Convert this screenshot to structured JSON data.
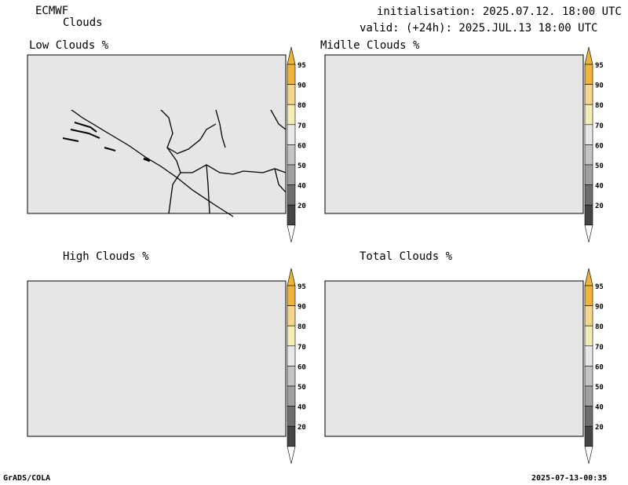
{
  "header": {
    "model": "ECMWF",
    "product": "Clouds",
    "init_line": "initialisation: 2025.07.12. 18:00 UTC",
    "valid_line": "valid: (+24h): 2025.JUL.13 18:00 UTC"
  },
  "panels": [
    {
      "title": "Low Clouds %"
    },
    {
      "title": "Midlle Clouds %"
    },
    {
      "title": "High Clouds %"
    },
    {
      "title": "Total Clouds %"
    }
  ],
  "colorbar": {
    "labels": [
      "95",
      "90",
      "80",
      "70",
      "60",
      "50",
      "40",
      "20"
    ],
    "colors": [
      "#ecb43a",
      "#f4d78c",
      "#f3ecb6",
      "#e8e8e8",
      "#c4c4c4",
      "#a0a0a0",
      "#6e6e6e",
      "#444444"
    ]
  },
  "colors": {
    "land": "#e6e6e6",
    "cloud_high": "#ecb43a",
    "cloud_mid": "#f4d78c",
    "cloud_gray_dark": "#6e6e6e",
    "cloud_gray_mid": "#a0a0a0"
  },
  "footer": {
    "left": "GrADS/COLA",
    "right": "2025-07-13-00:35"
  }
}
